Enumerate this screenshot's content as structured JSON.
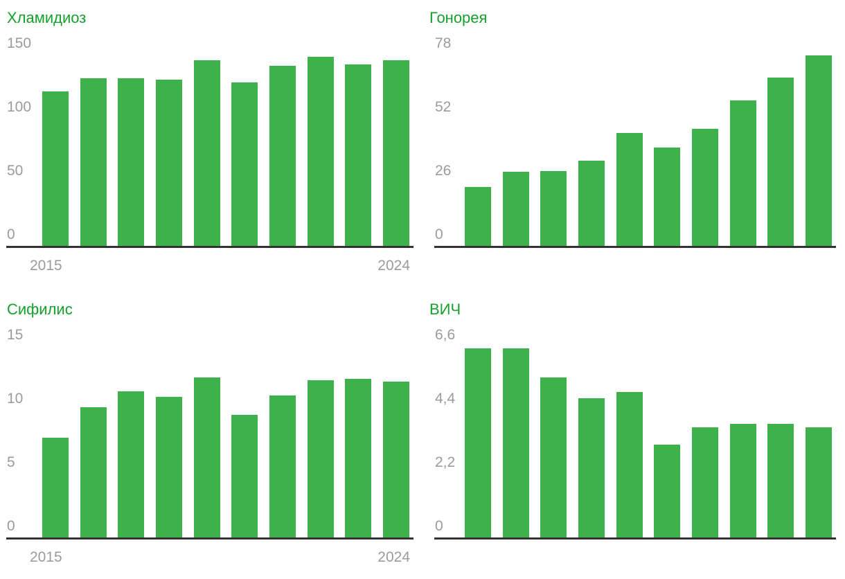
{
  "colors": {
    "bar_green": "#3eb14b",
    "title_green": "#16a12e",
    "tick_gray": "#9b9b9b",
    "axis_dark": "#333333"
  },
  "x_axis": {
    "first_year_label": "2015",
    "last_year_label": "2024"
  },
  "chart_data": [
    {
      "type": "bar",
      "title": "Хламидиоз",
      "categories": [
        2015,
        2016,
        2017,
        2018,
        2019,
        2020,
        2021,
        2022,
        2023,
        2024
      ],
      "values": [
        121,
        131,
        131,
        130,
        145,
        128,
        141,
        148,
        142,
        145
      ],
      "xlabel": "",
      "ylabel": "",
      "ylim": [
        0,
        150
      ],
      "y_ticks": [
        "150",
        "100",
        "50",
        "0"
      ],
      "x_tick_labels": [
        "2015",
        "2024"
      ],
      "show_x_labels": true,
      "grid": false,
      "legend": "none"
    },
    {
      "type": "bar",
      "title": "Гонорея",
      "categories": [
        2015,
        2016,
        2017,
        2018,
        2019,
        2020,
        2021,
        2022,
        2023,
        2024
      ],
      "values": [
        24,
        30,
        30.5,
        34.5,
        46,
        40,
        47.5,
        59,
        68.5,
        77.5
      ],
      "xlabel": "",
      "ylabel": "",
      "ylim": [
        0,
        78
      ],
      "y_ticks": [
        "78",
        "52",
        "26",
        "0"
      ],
      "x_tick_labels": [],
      "show_x_labels": false,
      "grid": false,
      "legend": "none"
    },
    {
      "type": "bar",
      "title": "Сифилис",
      "categories": [
        2015,
        2016,
        2017,
        2018,
        2019,
        2020,
        2021,
        2022,
        2023,
        2024
      ],
      "values": [
        7.8,
        10.2,
        11.4,
        11.0,
        12.5,
        9.6,
        11.1,
        12.3,
        12.4,
        12.2
      ],
      "xlabel": "",
      "ylabel": "",
      "ylim": [
        0,
        15
      ],
      "y_ticks": [
        "15",
        "10",
        "5",
        "0"
      ],
      "x_tick_labels": [
        "2015",
        "2024"
      ],
      "show_x_labels": true,
      "grid": false,
      "legend": "none"
    },
    {
      "type": "bar",
      "title": "ВИЧ",
      "categories": [
        2015,
        2016,
        2017,
        2018,
        2019,
        2020,
        2021,
        2022,
        2023,
        2024
      ],
      "values": [
        6.5,
        6.5,
        5.5,
        4.8,
        5.0,
        3.2,
        3.8,
        3.9,
        3.9,
        3.8
      ],
      "xlabel": "",
      "ylabel": "",
      "ylim": [
        0,
        6.6
      ],
      "y_ticks": [
        "6,6",
        "4,4",
        "2,2",
        "0"
      ],
      "x_tick_labels": [],
      "show_x_labels": false,
      "grid": false,
      "legend": "none"
    }
  ]
}
